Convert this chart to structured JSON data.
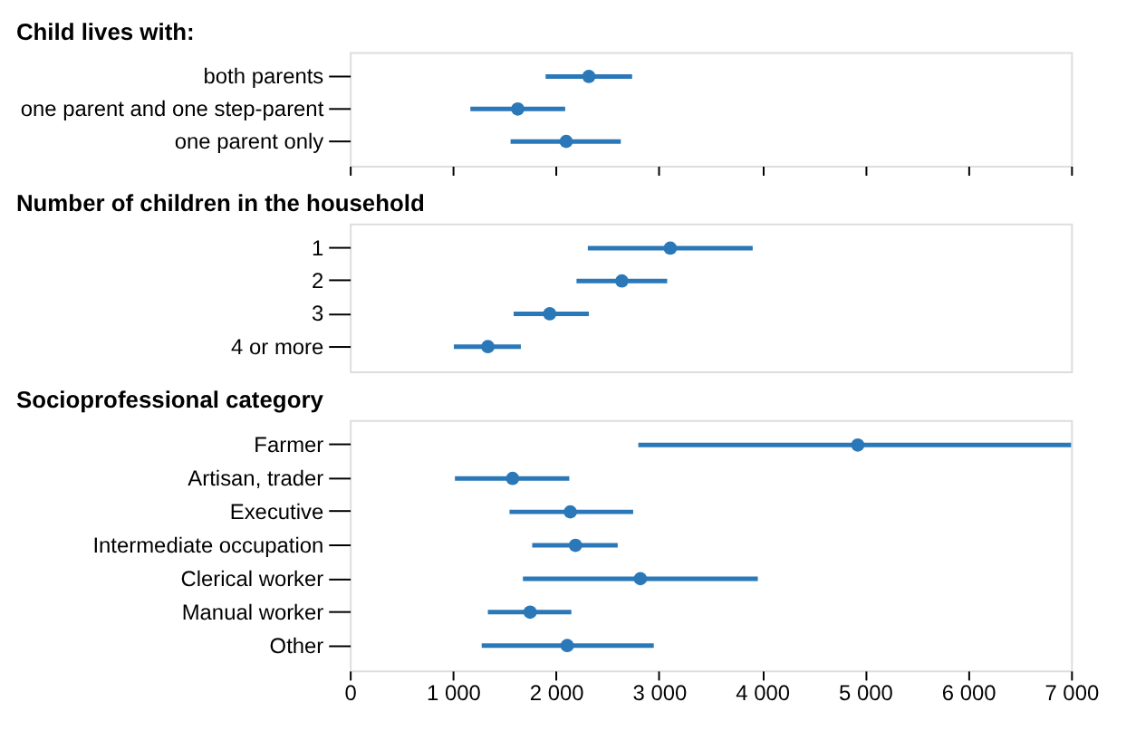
{
  "chart_data": [
    {
      "type": "scatter",
      "orientation": "horizontal",
      "title": "Child lives with:",
      "categories": [
        "both parents",
        "one parent and one step-parent",
        "one parent only"
      ],
      "values": [
        2320,
        1630,
        2100
      ],
      "errors": [
        [
          1900,
          2740
        ],
        [
          1170,
          2090
        ],
        [
          1560,
          2630
        ]
      ],
      "colors": [
        "#2a78b8",
        "#2a78b8",
        "#2a78b8"
      ],
      "xlim": [
        0,
        7000
      ],
      "xticks": [
        {
          "value": 0,
          "label": null
        },
        {
          "value": 1000,
          "label": null
        },
        {
          "value": 2000,
          "label": null
        },
        {
          "value": 3000,
          "label": null
        },
        {
          "value": 4000,
          "label": null
        },
        {
          "value": 5000,
          "label": null
        },
        {
          "value": 6000,
          "label": null
        },
        {
          "value": 7000,
          "label": null
        }
      ],
      "tick_labels": "y",
      "marker": "circle",
      "grid": false
    },
    {
      "type": "scatter",
      "orientation": "horizontal",
      "title": "Number of children in the household",
      "categories": [
        "1",
        "2",
        "3",
        "4 or more"
      ],
      "values": [
        3110,
        2640,
        1940,
        1340
      ],
      "errors": [
        [
          2310,
          3910
        ],
        [
          2200,
          3080
        ],
        [
          1590,
          2320
        ],
        [
          1010,
          1660
        ]
      ],
      "colors": [
        "#2a78b8",
        "#2a78b8",
        "#2a78b8",
        "#2a78b8"
      ],
      "xlim": [
        0,
        7000
      ],
      "tick_labels": "y",
      "marker": "circle",
      "grid": false
    },
    {
      "type": "scatter",
      "orientation": "horizontal",
      "title": "Socioprofessional category",
      "categories": [
        "Farmer",
        "Artisan, trader",
        "Executive",
        "Intermediate occupation",
        "Clerical worker",
        "Manual worker",
        "Other"
      ],
      "values": [
        4930,
        1580,
        2140,
        2190,
        2820,
        1750,
        2110
      ],
      "errors": [
        [
          2800,
          7000
        ],
        [
          1020,
          2130
        ],
        [
          1550,
          2750
        ],
        [
          1770,
          2600
        ],
        [
          1680,
          3960
        ],
        [
          1340,
          2150
        ],
        [
          1280,
          2950
        ]
      ],
      "colors": [
        "#2a78b8",
        "#2a78b8",
        "#2a78b8",
        "#2a78b8",
        "#2a78b8",
        "#2a78b8",
        "#2a78b8"
      ],
      "xlim": [
        0,
        7000
      ],
      "xticks": [
        0,
        {
          "value": 1000,
          "label": "1 000"
        },
        {
          "value": 2000,
          "label": "2 000"
        },
        {
          "value": 3000,
          "label": "3 000"
        },
        {
          "value": 4000,
          "label": "4 000"
        },
        {
          "value": 5000,
          "label": "5 000"
        },
        {
          "value": 6000,
          "label": "6 000"
        },
        {
          "value": 7000,
          "label": "7 000"
        }
      ],
      "marker": "circle",
      "grid": false
    }
  ]
}
